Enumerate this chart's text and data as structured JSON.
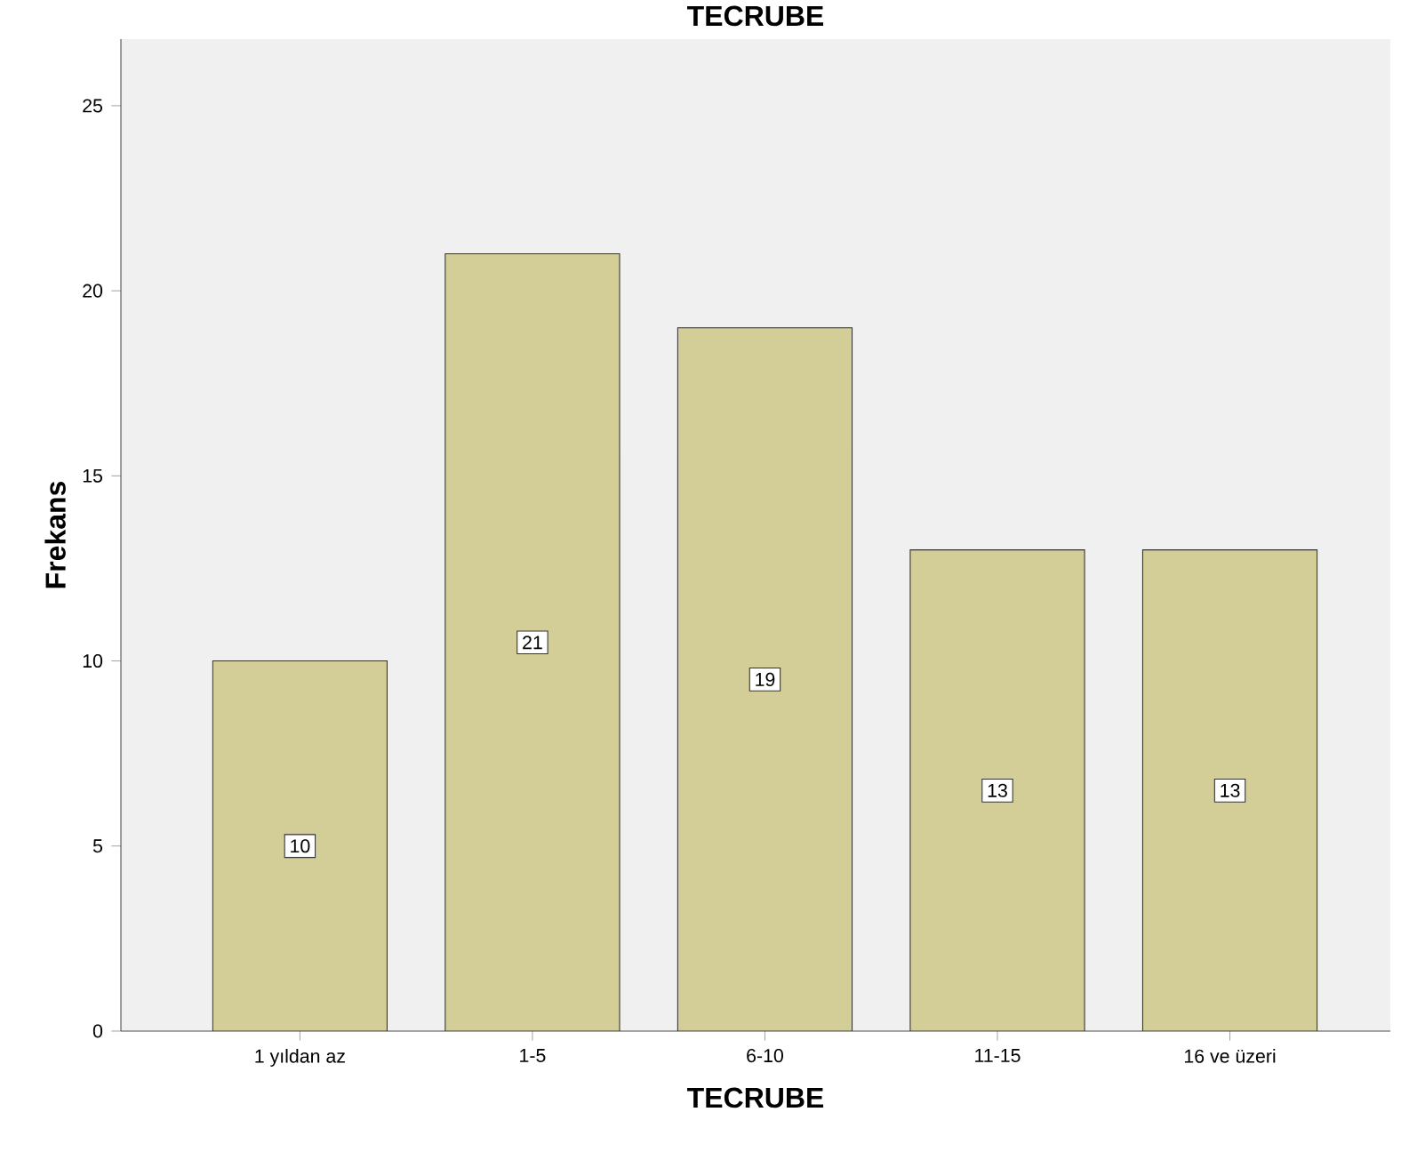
{
  "chart_data": {
    "type": "bar",
    "title": "TECRUBE",
    "xlabel": "TECRUBE",
    "ylabel": "Frekans",
    "categories": [
      "1 yıldan az",
      "1-5",
      "6-10",
      "11-15",
      "16 ve üzeri"
    ],
    "values": [
      10,
      21,
      19,
      13,
      13
    ],
    "color": "#d3ce97",
    "ylim": [
      0,
      26.8
    ],
    "yticks": [
      0,
      5,
      10,
      15,
      20,
      25
    ],
    "data_labels": true,
    "grid": false
  }
}
